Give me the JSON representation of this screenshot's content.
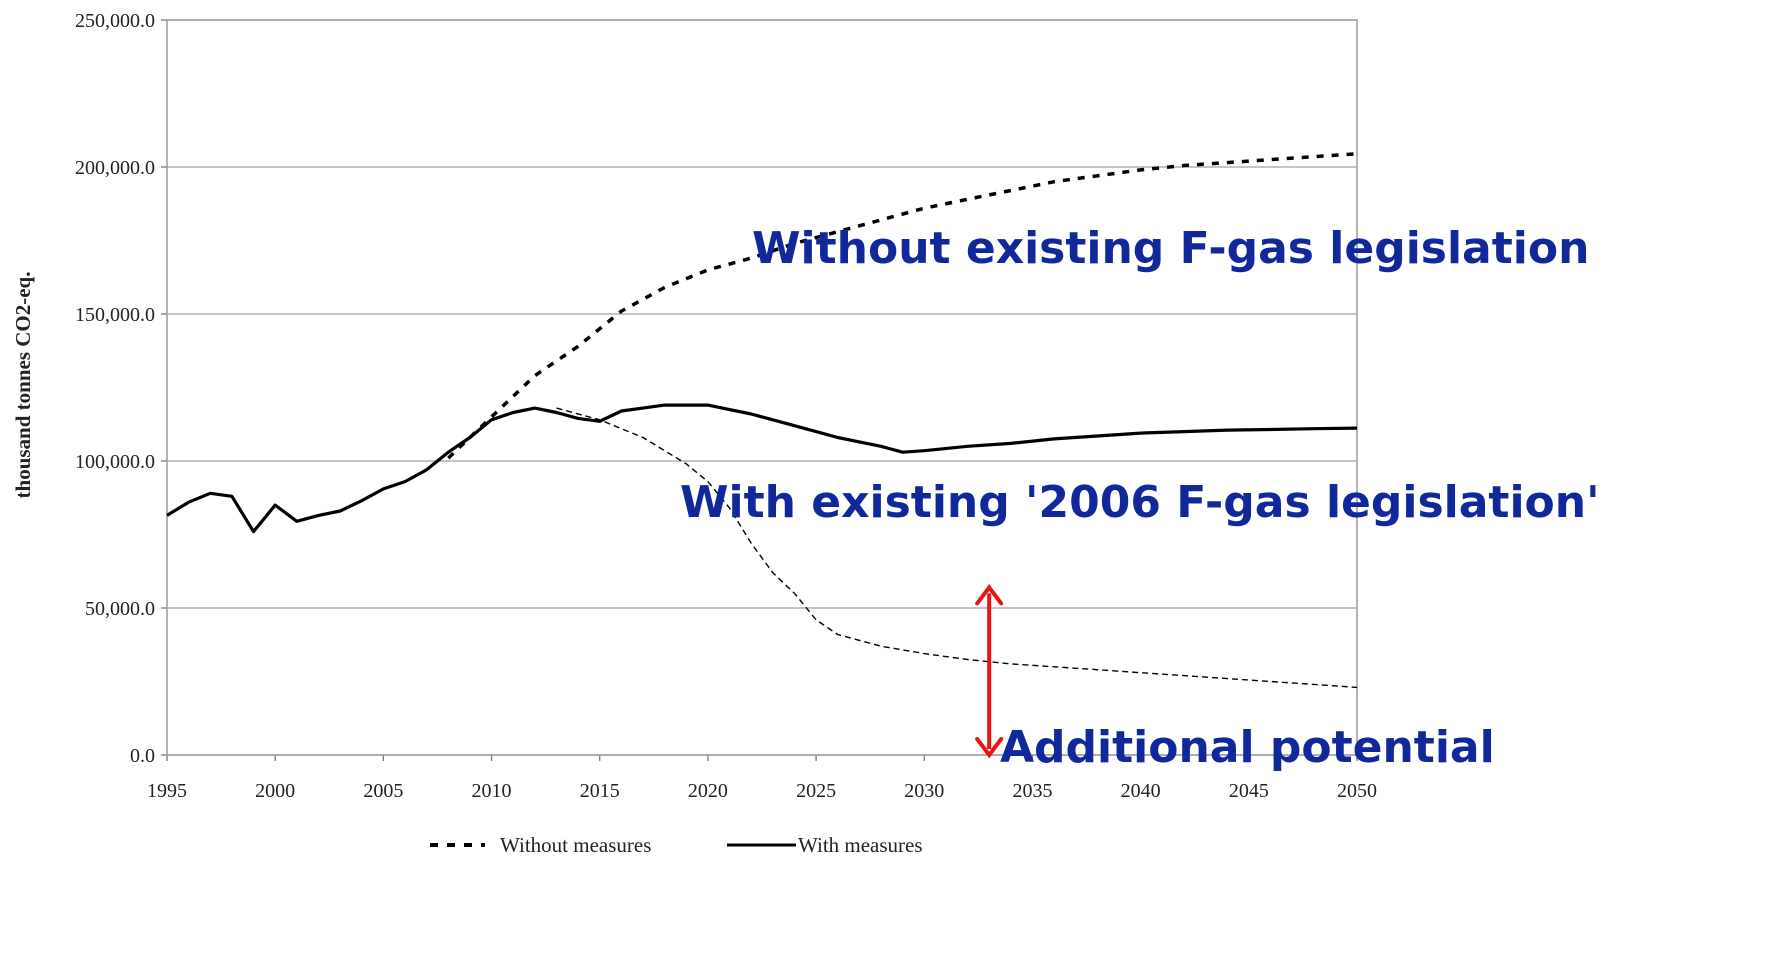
{
  "chart_data": {
    "type": "line",
    "title": "",
    "xlabel": "",
    "ylabel": "thousand tonnes CO2-eq.",
    "ylim": [
      0,
      250000
    ],
    "xlim": [
      1995,
      2050
    ],
    "grid": "horizontal",
    "x_ticks": [
      "1995",
      "2000",
      "2005",
      "2010",
      "2015",
      "2020",
      "2025",
      "2030",
      "2035",
      "2040",
      "2045",
      "2050"
    ],
    "y_ticks": [
      "0.0",
      "50,000.0",
      "100,000.0",
      "150,000.0",
      "200,000.0",
      "250,000.0"
    ],
    "y_tick_values": [
      0,
      50000,
      100000,
      150000,
      200000,
      250000
    ],
    "x_tick_values": [
      1995,
      2000,
      2005,
      2010,
      2015,
      2020,
      2025,
      2030,
      2035,
      2040,
      2045,
      2050
    ],
    "series": [
      {
        "name": "Without measures",
        "style": "dotted",
        "color": "#000000",
        "x": [
          2008,
          2010,
          2012,
          2014,
          2016,
          2018,
          2020,
          2022,
          2024,
          2026,
          2028,
          2030,
          2032,
          2034,
          2036,
          2038,
          2040,
          2042,
          2044,
          2046,
          2048,
          2050
        ],
        "y": [
          101000,
          115000,
          129000,
          139000,
          151000,
          159000,
          165000,
          169000,
          174000,
          178000,
          182000,
          186000,
          189000,
          192000,
          195000,
          197000,
          199000,
          200500,
          201500,
          202500,
          203500,
          204500
        ]
      },
      {
        "name": "With measures",
        "style": "solid",
        "color": "#000000",
        "x": [
          1995,
          1996,
          1997,
          1998,
          1999,
          2000,
          2001,
          2002,
          2003,
          2004,
          2005,
          2006,
          2007,
          2008,
          2009,
          2010,
          2011,
          2012,
          2013,
          2014,
          2015,
          2016,
          2017,
          2018,
          2019,
          2020,
          2021,
          2022,
          2023,
          2024,
          2025,
          2026,
          2027,
          2028,
          2029,
          2030,
          2032,
          2034,
          2036,
          2038,
          2040,
          2042,
          2044,
          2046,
          2048,
          2050
        ],
        "y": [
          81500,
          86000,
          89000,
          88000,
          76000,
          85000,
          79500,
          81500,
          83000,
          86500,
          90500,
          93000,
          97000,
          103000,
          108000,
          114000,
          116500,
          118000,
          116500,
          114500,
          113500,
          117000,
          118000,
          119000,
          119000,
          119000,
          117500,
          116000,
          114000,
          112000,
          110000,
          108000,
          106500,
          105000,
          103000,
          103500,
          105000,
          106000,
          107500,
          108500,
          109500,
          110000,
          110500,
          110700,
          111000,
          111200
        ]
      },
      {
        "name": "",
        "style": "dashed-thin",
        "color": "#000000",
        "x": [
          2013,
          2015,
          2017,
          2019,
          2020,
          2021,
          2022,
          2023,
          2024,
          2025,
          2026,
          2028,
          2030,
          2032,
          2034,
          2036,
          2038,
          2040,
          2042,
          2044,
          2046,
          2048,
          2050
        ],
        "y": [
          118000,
          114000,
          108000,
          99000,
          93000,
          84000,
          72000,
          62000,
          55000,
          46000,
          41000,
          37000,
          34500,
          32500,
          31000,
          30000,
          29000,
          28000,
          27000,
          26000,
          25000,
          24000,
          23000
        ]
      }
    ],
    "legend": {
      "placement": "bottom-center",
      "items": [
        {
          "label": "Without measures",
          "style": "dotted"
        },
        {
          "label": "With measures",
          "style": "solid"
        }
      ]
    },
    "annotations": {
      "without_label": "Without existing F-gas legislation",
      "with_label": "With existing '2006 F-gas legislation'",
      "potential_label": "Additional potential",
      "arrow_x": 2033,
      "arrow_from": 0,
      "arrow_to": 57000,
      "annotation_color": "#10289a",
      "arrow_color": "#ee1111"
    }
  }
}
